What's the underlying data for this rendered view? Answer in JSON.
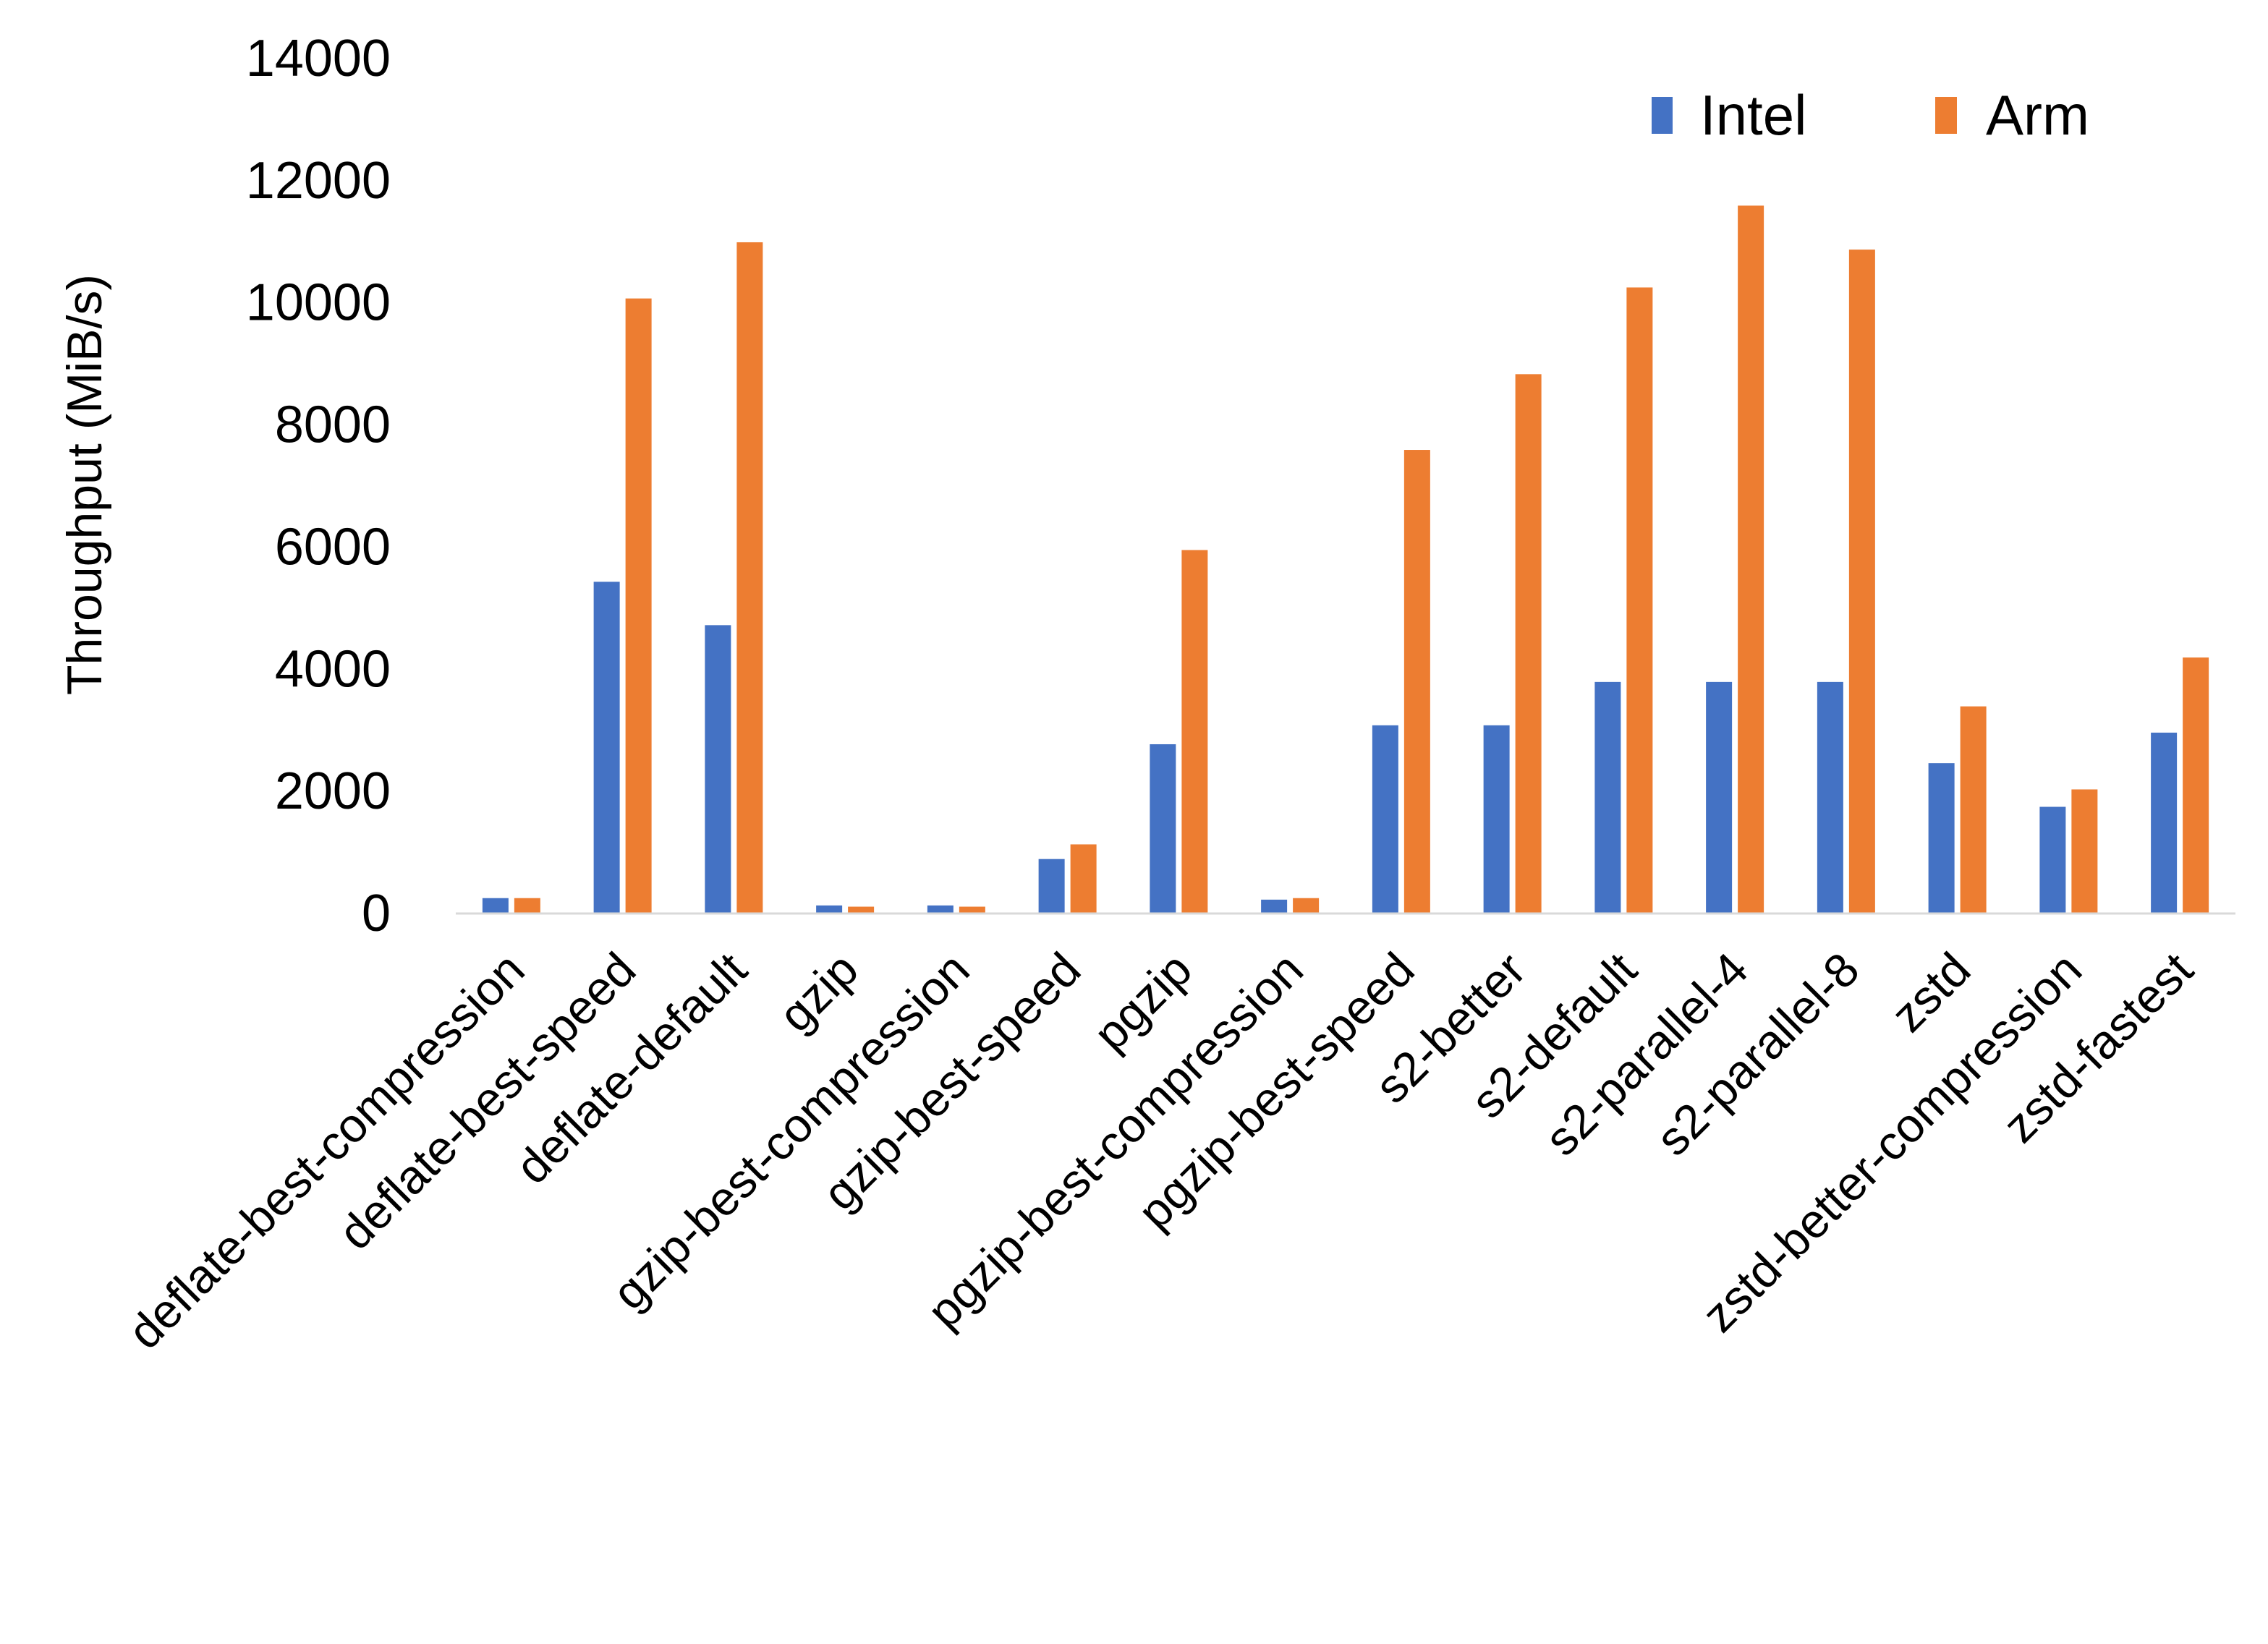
{
  "chart_data": {
    "type": "bar",
    "title": "",
    "xlabel": "",
    "ylabel": "Throughput (MiB/s)",
    "ylim": [
      0,
      14000
    ],
    "yticks": [
      0,
      2000,
      4000,
      6000,
      8000,
      10000,
      12000,
      14000
    ],
    "grid": false,
    "legend_position": "top-right",
    "categories": [
      "deflate-best-compression",
      "deflate-best-speed",
      "deflate-default",
      "gzip",
      "gzip-best-compression",
      "gzip-best-speed",
      "pgzip",
      "pgzip-best-compression",
      "pgzip-best-speed",
      "s2-better",
      "s2-default",
      "s2-parallel-4",
      "s2-parallel-8",
      "zstd",
      "zstd-better-compression",
      "zstd-fastest"
    ],
    "series": [
      {
        "name": "Intel",
        "color": "#4472c4",
        "values": [
          240,
          5420,
          4710,
          120,
          120,
          880,
          2760,
          215,
          3070,
          3070,
          3780,
          3780,
          3780,
          2450,
          1735,
          2950
        ]
      },
      {
        "name": "Arm",
        "color": "#ed7d31",
        "values": [
          240,
          10060,
          10980,
          100,
          100,
          1120,
          5940,
          240,
          7580,
          8820,
          10240,
          11580,
          10860,
          3380,
          2020,
          4180
        ]
      }
    ]
  }
}
